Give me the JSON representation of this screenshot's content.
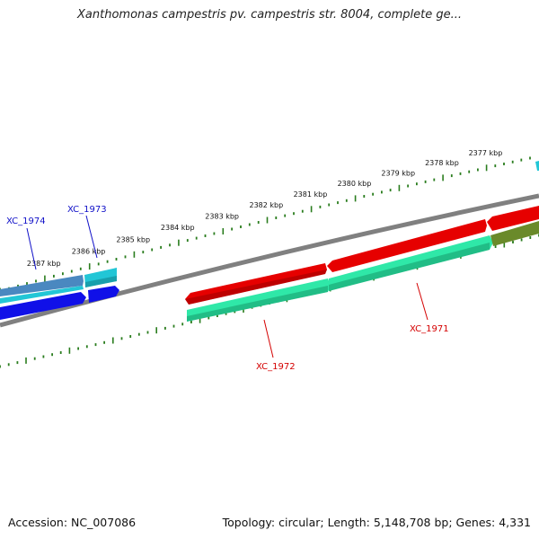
{
  "title": "Xanthomonas campestris pv. campestris str. 8004, complete ge...",
  "footer": {
    "accession": "Accession: NC_007086",
    "summary": "Topology: circular; Length: 5,148,708 bp; Genes: 4,331"
  },
  "ruler": {
    "tick_labels": [
      "2377 kbp",
      "2378 kbp",
      "2379 kbp",
      "2380 kbp",
      "2381 kbp",
      "2382 kbp",
      "2383 kbp",
      "2384 kbp",
      "2385 kbp",
      "2386 kbp",
      "2387 kbp"
    ],
    "tick_color": "#2a7d1e"
  },
  "colors": {
    "backbone": "#808080",
    "gene_red": "#e60000",
    "gene_green": "#2fe8a8",
    "gene_blue": "#1010e8",
    "gene_cyan": "#22c6d6",
    "gene_steel": "#4a88c0",
    "gene_olive": "#6a8a2a",
    "label_red": "#d40000",
    "label_blue": "#1010c8"
  },
  "gene_labels": {
    "xc_1974": "XC_1974",
    "xc_1973": "XC_1973",
    "xc_1972": "XC_1972",
    "xc_1971": "XC_1971"
  }
}
